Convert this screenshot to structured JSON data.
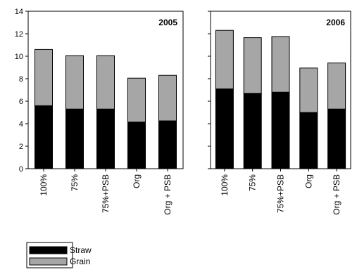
{
  "chart_data": [
    {
      "type": "bar",
      "stacked": true,
      "title": "2005",
      "categories": [
        "100%",
        "75%",
        "75%+PSB",
        "Org",
        "Org + PSB"
      ],
      "series": [
        {
          "name": "Straw",
          "color": "#000000",
          "values": [
            5.6,
            5.3,
            5.3,
            4.15,
            4.25
          ]
        },
        {
          "name": "Grain",
          "color": "#a6a6a6",
          "values": [
            5.0,
            4.75,
            4.75,
            3.9,
            4.05
          ]
        }
      ],
      "ylim": [
        0,
        14
      ],
      "yticks": [
        "0",
        "2",
        "4",
        "6",
        "8",
        "10",
        "12",
        "14"
      ]
    },
    {
      "type": "bar",
      "stacked": true,
      "title": "2006",
      "categories": [
        "100%",
        "75%",
        "75%+PSB",
        "Org",
        "Org + PSB"
      ],
      "series": [
        {
          "name": "Straw",
          "color": "#000000",
          "values": [
            7.1,
            6.7,
            6.8,
            5.0,
            5.3
          ]
        },
        {
          "name": "Grain",
          "color": "#a6a6a6",
          "values": [
            5.2,
            4.95,
            4.95,
            3.95,
            4.1
          ]
        }
      ],
      "ylim": [
        0,
        14
      ]
    }
  ],
  "legend": {
    "items": [
      {
        "label": "Straw",
        "color": "#000000"
      },
      {
        "label": "Grain",
        "color": "#a6a6a6"
      }
    ]
  }
}
